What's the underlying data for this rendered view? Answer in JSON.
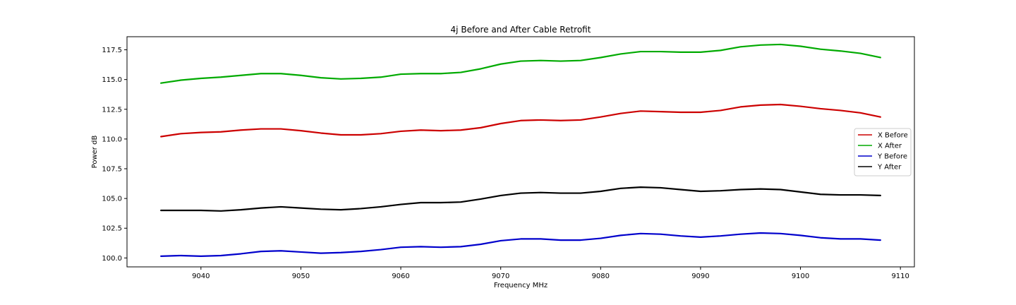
{
  "chart_data": {
    "type": "line",
    "title": "4j Before and After Cable Retrofit",
    "xlabel": "Frequency MHz",
    "ylabel": "Power dB",
    "xlim": [
      9032.6,
      9111.4
    ],
    "ylim": [
      99.25,
      118.6
    ],
    "xticks": [
      9040,
      9050,
      9060,
      9070,
      9080,
      9090,
      9100,
      9110
    ],
    "yticks": [
      100.0,
      102.5,
      105.0,
      107.5,
      110.0,
      112.5,
      115.0,
      117.5
    ],
    "grid": false,
    "legend_position": "center-right",
    "series": [
      {
        "name": "X Before",
        "color": "#cc0000",
        "x": [
          9036,
          9038,
          9040,
          9042,
          9044,
          9046,
          9048,
          9050,
          9052,
          9054,
          9056,
          9058,
          9060,
          9062,
          9064,
          9066,
          9068,
          9070,
          9072,
          9074,
          9076,
          9078,
          9080,
          9082,
          9084,
          9086,
          9088,
          9090,
          9092,
          9094,
          9096,
          9098,
          9100,
          9102,
          9104,
          9106,
          9108
        ],
        "y": [
          110.2,
          110.45,
          110.55,
          110.6,
          110.75,
          110.85,
          110.85,
          110.7,
          110.5,
          110.35,
          110.35,
          110.45,
          110.65,
          110.75,
          110.7,
          110.75,
          110.95,
          111.3,
          111.55,
          111.6,
          111.55,
          111.6,
          111.85,
          112.15,
          112.35,
          112.3,
          112.25,
          112.25,
          112.4,
          112.7,
          112.85,
          112.9,
          112.75,
          112.55,
          112.4,
          112.2,
          111.85
        ]
      },
      {
        "name": "X After",
        "color": "#00aa00",
        "x": [
          9036,
          9038,
          9040,
          9042,
          9044,
          9046,
          9048,
          9050,
          9052,
          9054,
          9056,
          9058,
          9060,
          9062,
          9064,
          9066,
          9068,
          9070,
          9072,
          9074,
          9076,
          9078,
          9080,
          9082,
          9084,
          9086,
          9088,
          9090,
          9092,
          9094,
          9096,
          9098,
          9100,
          9102,
          9104,
          9106,
          9108
        ],
        "y": [
          114.7,
          114.95,
          115.1,
          115.2,
          115.35,
          115.5,
          115.5,
          115.35,
          115.15,
          115.05,
          115.1,
          115.2,
          115.45,
          115.5,
          115.5,
          115.6,
          115.9,
          116.3,
          116.55,
          116.6,
          116.55,
          116.6,
          116.85,
          117.15,
          117.35,
          117.35,
          117.3,
          117.3,
          117.45,
          117.75,
          117.9,
          117.95,
          117.8,
          117.55,
          117.4,
          117.2,
          116.85
        ]
      },
      {
        "name": "Y Before",
        "color": "#0000cc",
        "x": [
          9036,
          9038,
          9040,
          9042,
          9044,
          9046,
          9048,
          9050,
          9052,
          9054,
          9056,
          9058,
          9060,
          9062,
          9064,
          9066,
          9068,
          9070,
          9072,
          9074,
          9076,
          9078,
          9080,
          9082,
          9084,
          9086,
          9088,
          9090,
          9092,
          9094,
          9096,
          9098,
          9100,
          9102,
          9104,
          9106,
          9108
        ],
        "y": [
          100.15,
          100.2,
          100.15,
          100.2,
          100.35,
          100.55,
          100.6,
          100.5,
          100.4,
          100.45,
          100.55,
          100.7,
          100.9,
          100.95,
          100.9,
          100.95,
          101.15,
          101.45,
          101.6,
          101.6,
          101.5,
          101.5,
          101.65,
          101.9,
          102.05,
          102.0,
          101.85,
          101.75,
          101.85,
          102.0,
          102.1,
          102.05,
          101.9,
          101.7,
          101.6,
          101.6,
          101.5
        ]
      },
      {
        "name": "Y After",
        "color": "#000000",
        "x": [
          9036,
          9038,
          9040,
          9042,
          9044,
          9046,
          9048,
          9050,
          9052,
          9054,
          9056,
          9058,
          9060,
          9062,
          9064,
          9066,
          9068,
          9070,
          9072,
          9074,
          9076,
          9078,
          9080,
          9082,
          9084,
          9086,
          9088,
          9090,
          9092,
          9094,
          9096,
          9098,
          9100,
          9102,
          9104,
          9106,
          9108
        ],
        "y": [
          104.0,
          104.0,
          104.0,
          103.95,
          104.05,
          104.2,
          104.3,
          104.2,
          104.1,
          104.05,
          104.15,
          104.3,
          104.5,
          104.65,
          104.65,
          104.7,
          104.95,
          105.25,
          105.45,
          105.5,
          105.45,
          105.45,
          105.6,
          105.85,
          105.95,
          105.9,
          105.75,
          105.6,
          105.65,
          105.75,
          105.8,
          105.75,
          105.55,
          105.35,
          105.3,
          105.3,
          105.25
        ]
      }
    ]
  }
}
